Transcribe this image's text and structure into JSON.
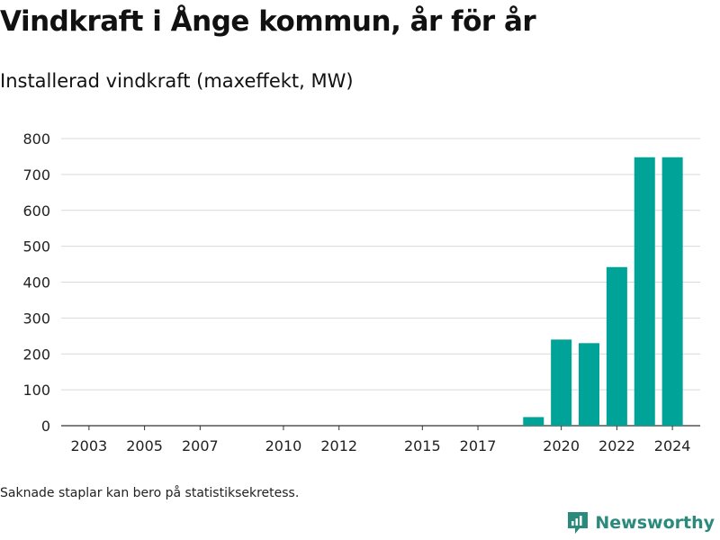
{
  "header": {
    "title": "Vindkraft i Ånge kommun, år för år",
    "subtitle": "Installerad vindkraft (maxeffekt, MW)"
  },
  "footer": {
    "note": "Saknade staplar kan bero på statistiksekretess.",
    "brand": "Newsworthy"
  },
  "colors": {
    "bar": "#00a398",
    "grid": "#d9d9d9",
    "brand": "#2a8a7c"
  },
  "chart_data": {
    "type": "bar",
    "title": "Vindkraft i Ånge kommun, år för år",
    "subtitle": "Installerad vindkraft (maxeffekt, MW)",
    "xlabel": "",
    "ylabel": "",
    "x_range": [
      2002,
      2025
    ],
    "ylim": [
      0,
      800
    ],
    "y_ticks": [
      0,
      100,
      200,
      300,
      400,
      500,
      600,
      700,
      800
    ],
    "x_tick_labels": [
      2003,
      2005,
      2007,
      2010,
      2012,
      2015,
      2017,
      2020,
      2022,
      2024
    ],
    "grid": true,
    "legend": "none",
    "bars": [
      {
        "year": 2019,
        "value": 24
      },
      {
        "year": 2020,
        "value": 240
      },
      {
        "year": 2021,
        "value": 230
      },
      {
        "year": 2022,
        "value": 442
      },
      {
        "year": 2023,
        "value": 748
      },
      {
        "year": 2024,
        "value": 748
      }
    ]
  }
}
